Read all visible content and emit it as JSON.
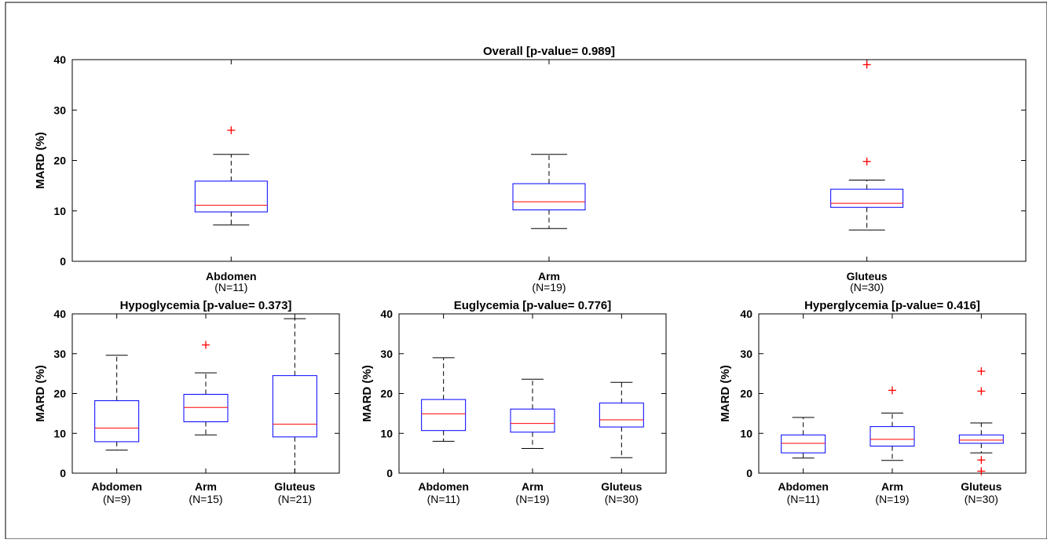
{
  "chart_data": [
    {
      "type": "box",
      "title": "Overall [p-value= 0.989]",
      "ylabel": "MARD (%)",
      "ylim": [
        0,
        40
      ],
      "yticks": [
        0,
        10,
        20,
        30,
        40
      ],
      "categories": [
        "Abdomen",
        "Arm",
        "Gluteus"
      ],
      "counts": [
        "(N=11)",
        "(N=19)",
        "(N=30)"
      ],
      "boxes": [
        {
          "whisker_low": 7.2,
          "q1": 9.8,
          "median": 11.1,
          "q3": 15.9,
          "whisker_high": 21.2,
          "outliers": [
            26
          ]
        },
        {
          "whisker_low": 6.5,
          "q1": 10.2,
          "median": 11.8,
          "q3": 15.4,
          "whisker_high": 21.2,
          "outliers": []
        },
        {
          "whisker_low": 6.2,
          "q1": 10.7,
          "median": 11.5,
          "q3": 14.3,
          "whisker_high": 16.1,
          "outliers": [
            19.8,
            39
          ]
        }
      ]
    },
    {
      "type": "box",
      "title": "Hypoglycemia [p-value= 0.373]",
      "ylabel": "MARD (%)",
      "ylim": [
        0,
        40
      ],
      "yticks": [
        0,
        10,
        20,
        30,
        40
      ],
      "categories": [
        "Abdomen",
        "Arm",
        "Gluteus"
      ],
      "counts": [
        "(N=9)",
        "(N=15)",
        "(N=21)"
      ],
      "boxes": [
        {
          "whisker_low": 5.8,
          "q1": 7.9,
          "median": 11.3,
          "q3": 18.2,
          "whisker_high": 29.6,
          "outliers": []
        },
        {
          "whisker_low": 9.6,
          "q1": 12.9,
          "median": 16.5,
          "q3": 19.8,
          "whisker_high": 25.2,
          "outliers": [
            32.2
          ]
        },
        {
          "whisker_low": 0,
          "q1": 9.1,
          "median": 12.3,
          "q3": 24.5,
          "whisker_high": 38.8,
          "outliers": []
        }
      ]
    },
    {
      "type": "box",
      "title": "Euglycemia [p-value= 0.776]",
      "ylabel": "MARD (%)",
      "ylim": [
        0,
        40
      ],
      "yticks": [
        0,
        10,
        20,
        30,
        40
      ],
      "categories": [
        "Abdomen",
        "Arm",
        "Gluteus"
      ],
      "counts": [
        "(N=11)",
        "(N=19)",
        "(N=30)"
      ],
      "boxes": [
        {
          "whisker_low": 8,
          "q1": 10.7,
          "median": 14.9,
          "q3": 18.5,
          "whisker_high": 29,
          "outliers": []
        },
        {
          "whisker_low": 6.2,
          "q1": 10.3,
          "median": 12.5,
          "q3": 16.1,
          "whisker_high": 23.6,
          "outliers": []
        },
        {
          "whisker_low": 3.9,
          "q1": 11.6,
          "median": 13.4,
          "q3": 17.6,
          "whisker_high": 22.8,
          "outliers": []
        }
      ]
    },
    {
      "type": "box",
      "title": "Hyperglycemia [p-value= 0.416]",
      "ylabel": "MARD (%)",
      "ylim": [
        0,
        40
      ],
      "yticks": [
        0,
        10,
        20,
        30,
        40
      ],
      "categories": [
        "Abdomen",
        "Arm",
        "Gluteus"
      ],
      "counts": [
        "(N=11)",
        "(N=19)",
        "(N=30)"
      ],
      "boxes": [
        {
          "whisker_low": 3.8,
          "q1": 5.1,
          "median": 7.5,
          "q3": 9.6,
          "whisker_high": 14,
          "outliers": []
        },
        {
          "whisker_low": 3.2,
          "q1": 6.8,
          "median": 8.5,
          "q3": 11.7,
          "whisker_high": 15.1,
          "outliers": [
            20.8
          ]
        },
        {
          "whisker_low": 5.1,
          "q1": 7.5,
          "median": 8.3,
          "q3": 9.6,
          "whisker_high": 12.6,
          "outliers": [
            0.5,
            3.3,
            20.6,
            25.6
          ]
        }
      ]
    }
  ],
  "colors": {
    "box": "#0000ff",
    "median": "#ff0000",
    "outlier": "#ff0000",
    "whisker": "#000000",
    "axis": "#000000"
  }
}
